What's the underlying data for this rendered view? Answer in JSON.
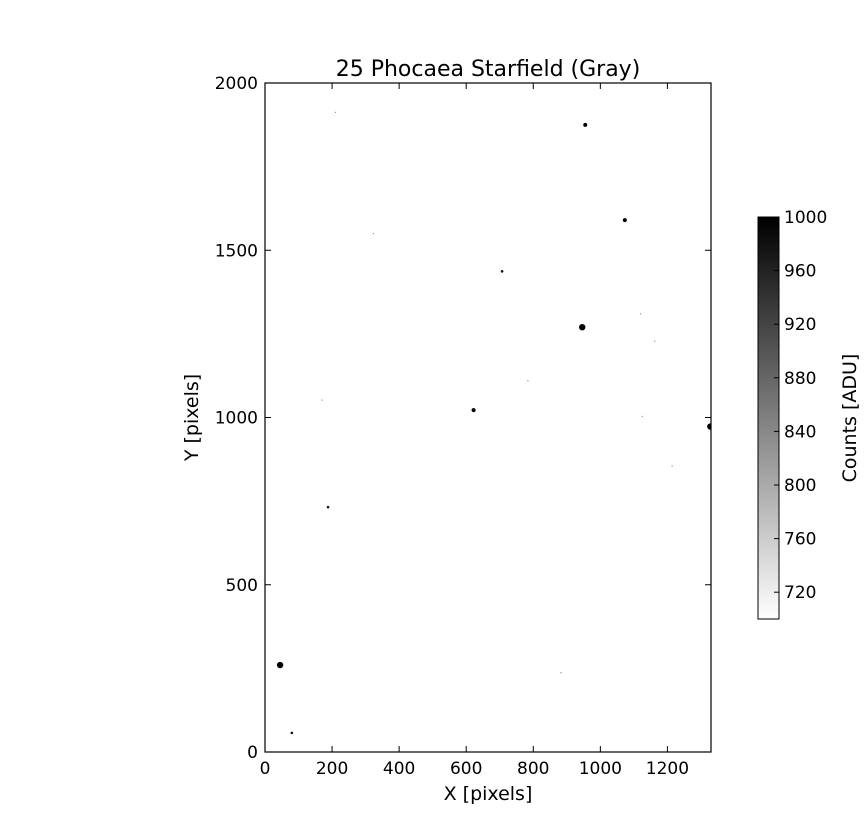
{
  "chart_data": {
    "type": "heatmap",
    "title": "25 Phocaea Starfield (Gray)",
    "xlabel": "X [pixels]",
    "ylabel": "Y [pixels]",
    "xlim": [
      0,
      1330
    ],
    "ylim": [
      0,
      2000
    ],
    "xticks": [
      0,
      200,
      400,
      600,
      800,
      1000,
      1200
    ],
    "yticks": [
      0,
      500,
      1000,
      1500,
      2000
    ],
    "grid": false,
    "colormap": "gray_r",
    "colorbar": {
      "label": "Counts [ADU]",
      "range": [
        700,
        1000
      ],
      "ticks": [
        720,
        760,
        800,
        840,
        880,
        920,
        960,
        1000
      ],
      "placement": "right"
    },
    "stars": [
      {
        "x": 955,
        "y": 1875,
        "size": "small"
      },
      {
        "x": 1073,
        "y": 1590,
        "size": "small"
      },
      {
        "x": 707,
        "y": 1437,
        "size": "tiny"
      },
      {
        "x": 946,
        "y": 1270,
        "size": "medium"
      },
      {
        "x": 622,
        "y": 1022,
        "size": "small"
      },
      {
        "x": 1328,
        "y": 973,
        "size": "medium"
      },
      {
        "x": 188,
        "y": 732,
        "size": "tiny"
      },
      {
        "x": 45,
        "y": 260,
        "size": "medium"
      },
      {
        "x": 80,
        "y": 57,
        "size": "tiny"
      },
      {
        "x": 210,
        "y": 1912,
        "size": "faint"
      },
      {
        "x": 323,
        "y": 1550,
        "size": "faint"
      },
      {
        "x": 1120,
        "y": 1310,
        "size": "faint"
      },
      {
        "x": 1162,
        "y": 1228,
        "size": "faint"
      },
      {
        "x": 784,
        "y": 1110,
        "size": "faint"
      },
      {
        "x": 170,
        "y": 1052,
        "size": "faint"
      },
      {
        "x": 1125,
        "y": 1003,
        "size": "faint"
      },
      {
        "x": 1214,
        "y": 855,
        "size": "faint"
      },
      {
        "x": 883,
        "y": 237,
        "size": "faint"
      }
    ]
  }
}
